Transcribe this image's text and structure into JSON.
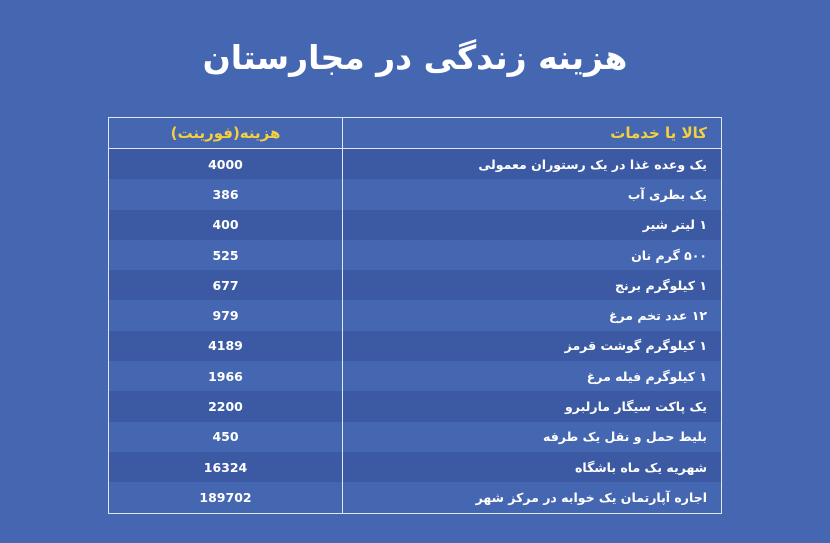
{
  "header": {
    "title": "هزینه زندگی در مجارستان"
  },
  "table": {
    "columns": [
      "کالا یا خدمات",
      "هزینه(فورینت)"
    ],
    "rows": [
      [
        "یک وعده غذا در یک رستوران معمولی",
        "4000"
      ],
      [
        "یک بطری آب",
        "386"
      ],
      [
        "۱ لیتر شیر",
        "400"
      ],
      [
        "۵۰۰ گرم نان",
        "525"
      ],
      [
        "۱ کیلوگرم برنج",
        "677"
      ],
      [
        "۱۲ عدد تخم مرغ",
        "979"
      ],
      [
        "۱ کیلوگرم گوشت قرمز",
        "4189"
      ],
      [
        "۱ کیلوگرم فیله مرغ",
        "1966"
      ],
      [
        "یک پاکت سیگار مارلبرو",
        "2200"
      ],
      [
        "بلیط حمل و نقل یک طرفه",
        "450"
      ],
      [
        "شهریه یک ماه باشگاه",
        "16324"
      ],
      [
        "اجاره آپارتمان یک خوابه در مرکز شهر",
        "189702"
      ]
    ]
  }
}
